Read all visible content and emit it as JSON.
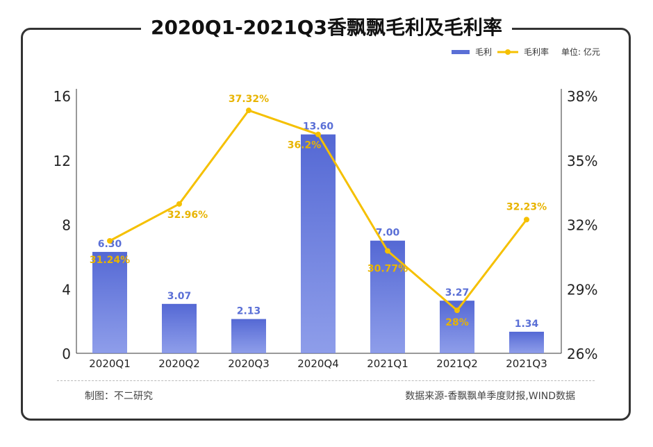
{
  "chart_data": {
    "type": "bar",
    "title": "2020Q1-2021Q3香飘飘毛利及毛利率",
    "categories": [
      "2020Q1",
      "2020Q2",
      "2020Q3",
      "2020Q4",
      "2021Q1",
      "2021Q2",
      "2021Q3"
    ],
    "series": [
      {
        "name": "毛利",
        "type": "bar",
        "axis": "left",
        "values": [
          6.3,
          3.07,
          2.13,
          13.6,
          7.0,
          3.27,
          1.34
        ],
        "labels": [
          "6.30",
          "3.07",
          "2.13",
          "13.60",
          "7.00",
          "3.27",
          "1.34"
        ],
        "color": "#5a6fd6"
      },
      {
        "name": "毛利率",
        "type": "line",
        "axis": "right",
        "values": [
          31.24,
          32.96,
          37.32,
          36.2,
          30.77,
          28,
          32.23
        ],
        "labels": [
          "31.24%",
          "32.96%",
          "37.32%",
          "36.2%",
          "30.77%",
          "28%",
          "32.23%"
        ],
        "color": "#f5c000"
      }
    ],
    "left_axis": {
      "ylim": [
        0,
        16
      ],
      "ticks": [
        "0",
        "4",
        "8",
        "12",
        "16"
      ]
    },
    "right_axis": {
      "ylim": [
        26,
        38
      ],
      "ticks": [
        "26%",
        "29%",
        "32%",
        "35%",
        "38%"
      ]
    },
    "unit": "单位: 亿元",
    "legend": "top-right",
    "grid": false
  },
  "footer": {
    "left": "制图：不二研究",
    "right": "数据来源-香飘飘单季度财报,WIND数据"
  }
}
